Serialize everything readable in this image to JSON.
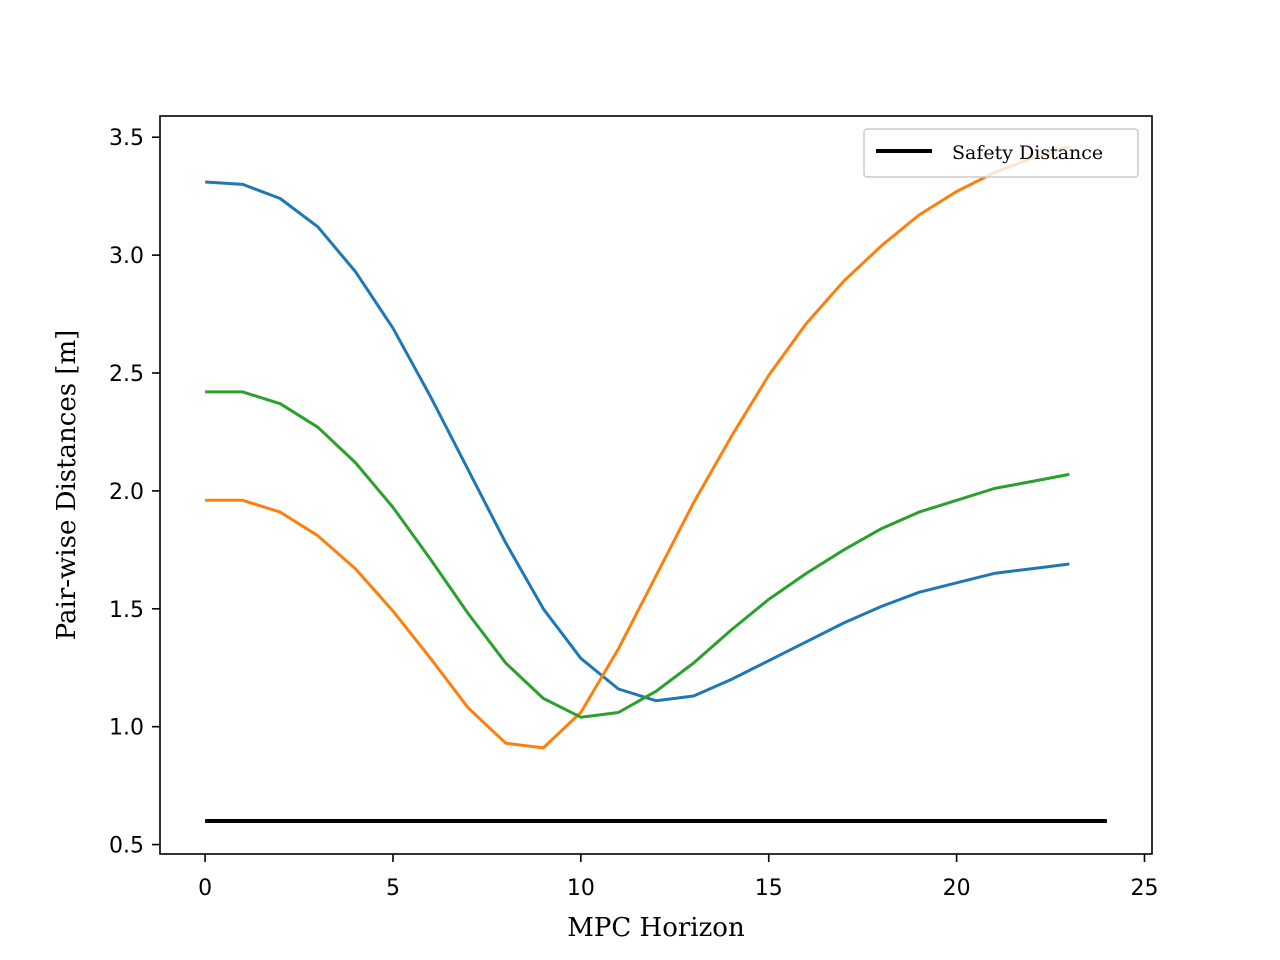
{
  "chart_data": {
    "type": "line",
    "title": "",
    "xlabel": "MPC Horizon",
    "ylabel": "Pair-wise Distances [m]",
    "xlim": [
      -1.2,
      25.2
    ],
    "ylim": [
      0.46,
      3.59
    ],
    "xticks": [
      0,
      5,
      10,
      15,
      20,
      25
    ],
    "xtick_labels": [
      "0",
      "5",
      "10",
      "15",
      "20",
      "25"
    ],
    "yticks": [
      0.5,
      1.0,
      1.5,
      2.0,
      2.5,
      3.0,
      3.5
    ],
    "ytick_labels": [
      "0.5",
      "1.0",
      "1.5",
      "2.0",
      "2.5",
      "3.0",
      "3.5"
    ],
    "grid": false,
    "legend_position": "upper right",
    "legend_entries": [
      "Safety Distance"
    ],
    "x": [
      0,
      1,
      2,
      3,
      4,
      5,
      6,
      7,
      8,
      9,
      10,
      11,
      12,
      13,
      14,
      15,
      16,
      17,
      18,
      19,
      20,
      21,
      22,
      23
    ],
    "series": [
      {
        "color": "#1f77b4",
        "values": [
          3.31,
          3.3,
          3.24,
          3.12,
          2.93,
          2.69,
          2.4,
          2.09,
          1.78,
          1.5,
          1.29,
          1.16,
          1.11,
          1.13,
          1.2,
          1.28,
          1.36,
          1.44,
          1.51,
          1.57,
          1.61,
          1.65,
          1.67,
          1.69
        ]
      },
      {
        "color": "#ff7f0e",
        "values": [
          1.96,
          1.96,
          1.91,
          1.81,
          1.67,
          1.49,
          1.29,
          1.08,
          0.93,
          0.91,
          1.06,
          1.33,
          1.64,
          1.95,
          2.23,
          2.49,
          2.71,
          2.89,
          3.04,
          3.17,
          3.27,
          3.35,
          3.41,
          3.46
        ]
      },
      {
        "color": "#2ca02c",
        "values": [
          2.42,
          2.42,
          2.37,
          2.27,
          2.12,
          1.93,
          1.71,
          1.48,
          1.27,
          1.12,
          1.04,
          1.06,
          1.15,
          1.27,
          1.41,
          1.54,
          1.65,
          1.75,
          1.84,
          1.91,
          1.96,
          2.01,
          2.04,
          2.07
        ]
      },
      {
        "name": "Safety Distance",
        "color": "#000000",
        "x": [
          0,
          24
        ],
        "values": [
          0.6,
          0.6
        ]
      }
    ]
  }
}
